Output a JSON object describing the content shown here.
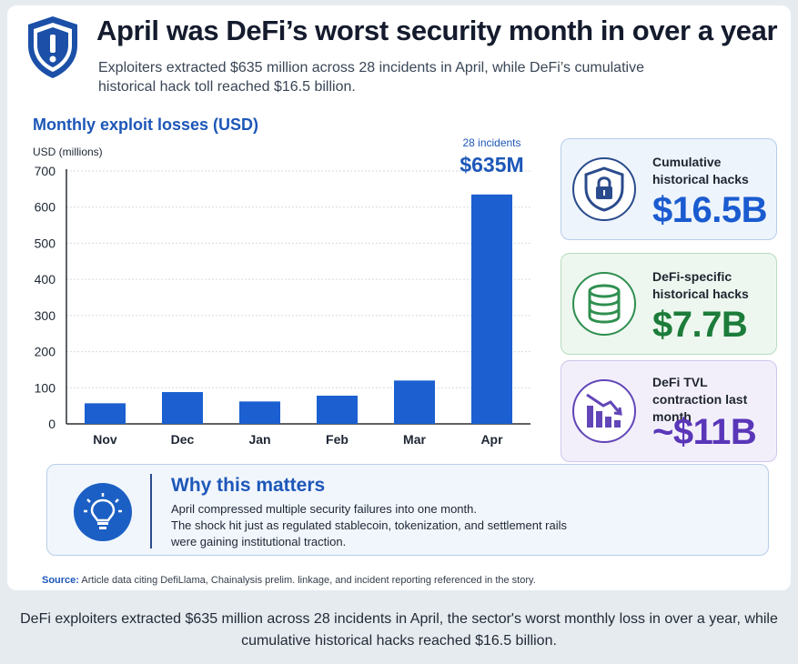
{
  "header": {
    "title": "April was DeFi’s worst security month in over a year",
    "subtitle": "Exploiters extracted $635 million across 28 incidents in April, while DeFi’s cumulative historical hack toll reached $16.5 billion."
  },
  "chart_data": {
    "type": "bar",
    "title": "Monthly exploit losses (USD)",
    "ylabel": "USD (millions)",
    "xlabel": "",
    "categories": [
      "Nov",
      "Dec",
      "Jan",
      "Feb",
      "Mar",
      "Apr"
    ],
    "values": [
      57,
      88,
      62,
      78,
      120,
      635
    ],
    "ylim": [
      0,
      700
    ],
    "yticks": [
      0,
      100,
      200,
      300,
      400,
      500,
      600,
      700
    ],
    "grid": true,
    "bar_color": "#1b5fd0",
    "annotation": {
      "category": "Apr",
      "line1": "28 incidents",
      "line2": "$635M"
    }
  },
  "stats": [
    {
      "label": "Cumulative historical hacks",
      "value": "$16.5B",
      "icon": "shield-lock-icon",
      "color": "#1a5bd0"
    },
    {
      "label": "DeFi-specific historical hacks",
      "value": "$7.7B",
      "icon": "database-icon",
      "color": "#1c7c3a"
    },
    {
      "label": "DeFi TVL contraction last month",
      "value": "~$11B",
      "icon": "declining-chart-icon",
      "color": "#5a36b8"
    }
  ],
  "why": {
    "title": "Why this matters",
    "lines": [
      "April compressed multiple security failures into one month.",
      "The shock hit just as regulated stablecoin, tokenization, and settlement rails",
      "were gaining institutional traction."
    ],
    "icon": "lightbulb-icon"
  },
  "source": {
    "label": "Source:",
    "text": "Article data citing DefiLlama, Chainalysis prelim. linkage, and incident reporting referenced in the story."
  },
  "caption": "DeFi exploiters extracted $635 million across 28 incidents in April, the sector's worst monthly loss in over a year, while cumulative historical hacks reached $16.5 billion."
}
